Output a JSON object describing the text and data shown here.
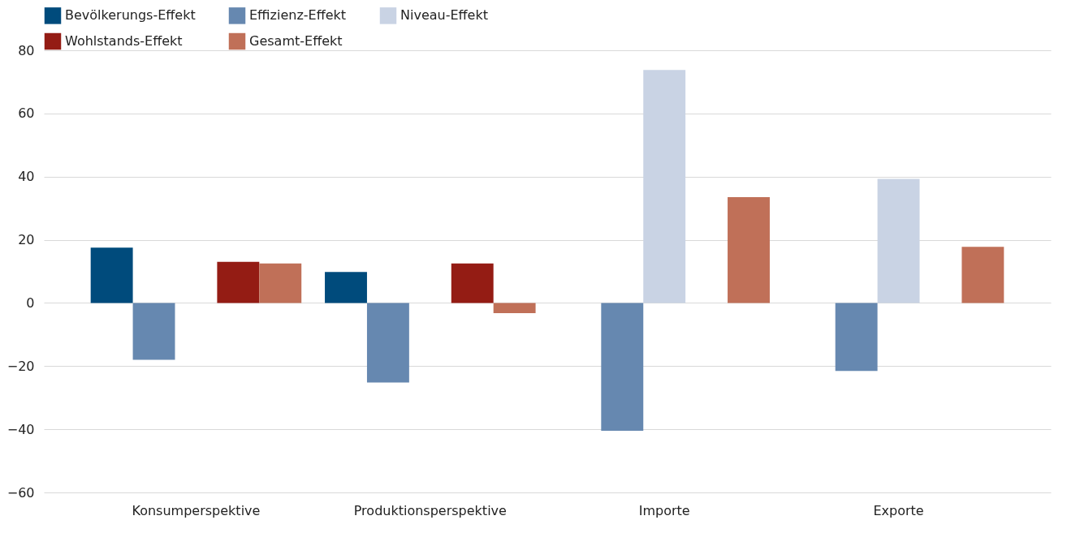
{
  "chart_data": {
    "type": "bar",
    "categories": [
      "Konsumperspektive",
      "Produktionsperspektive",
      "Importe",
      "Exporte"
    ],
    "series": [
      {
        "name": "Bevölkerungs-Effekt",
        "color": "#004b7c",
        "values": [
          17.5,
          9.8,
          null,
          null
        ]
      },
      {
        "name": "Effizienz-Effekt",
        "color": "#6688b0",
        "values": [
          -18,
          -25.2,
          -40.5,
          -21.5
        ]
      },
      {
        "name": "Niveau-Effekt",
        "color": "#c9d3e4",
        "values": [
          null,
          null,
          73.8,
          39.3
        ]
      },
      {
        "name": "Wohlstands-Effekt",
        "color": "#941c14",
        "values": [
          13,
          12.5,
          null,
          null
        ]
      },
      {
        "name": "Gesamt-Effekt",
        "color": "#c07058",
        "values": [
          12.5,
          -3.2,
          33.5,
          17.8
        ]
      }
    ],
    "ylim": [
      -60,
      80
    ],
    "yticks": [
      -60,
      -40,
      -20,
      0,
      20,
      40,
      60,
      80
    ],
    "grid": "y",
    "legend": "top"
  }
}
